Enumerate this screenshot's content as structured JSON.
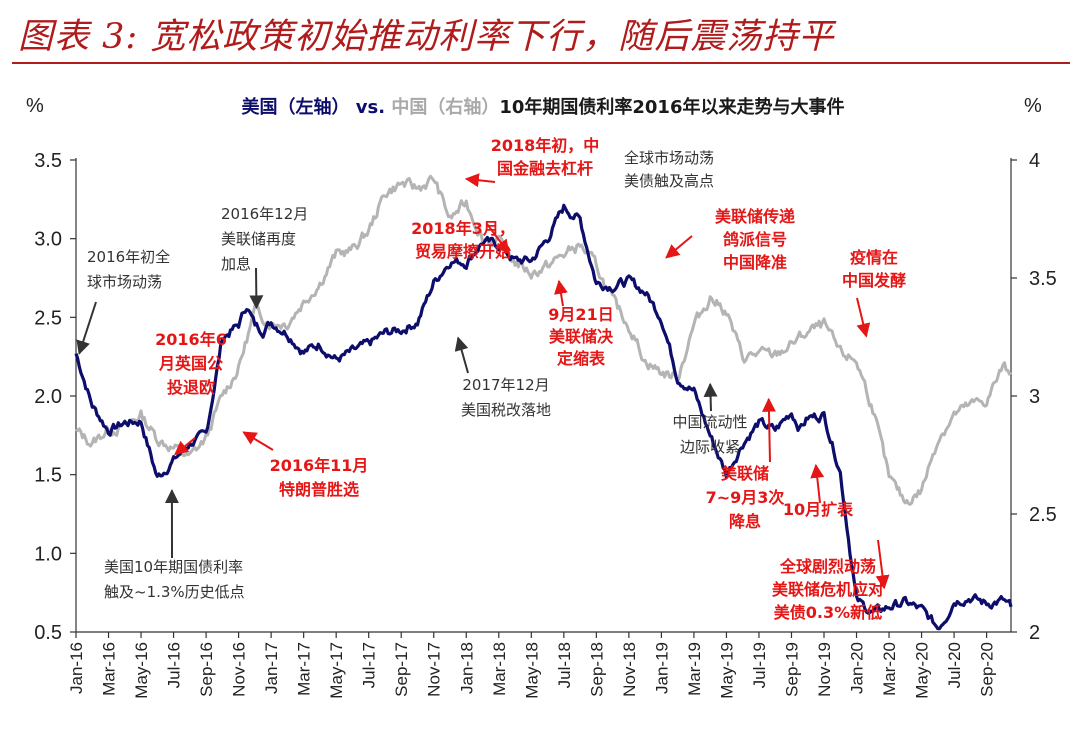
{
  "figure_title": "图表 3: 宽松政策初始推动利率下行，随后震荡持平",
  "colors": {
    "title": "#b01c1c",
    "us_series": "#0d0d6b",
    "cn_series": "#b4b4b4",
    "red_annotation": "#e51616",
    "dark_annotation": "#333333"
  },
  "chart_data": {
    "type": "line",
    "title": {
      "us": "美国（左轴）",
      "vs": " vs. ",
      "cn": "中国（右轴）",
      "rest": "10年期国债利率2016年以来走势与大事件"
    },
    "left_unit": "%",
    "right_unit": "%",
    "left_axis": {
      "min": 0.5,
      "max": 3.5,
      "ticks": [
        "3.5",
        "3.0",
        "2.5",
        "2.0",
        "1.5",
        "1.0",
        "0.5"
      ]
    },
    "right_axis": {
      "min": 2,
      "max": 4,
      "ticks": [
        "4",
        "3.5",
        "3",
        "2.5",
        "2"
      ]
    },
    "x_range": [
      0,
      57.5
    ],
    "x_tick_labels": [
      "Jan-16",
      "Mar-16",
      "May-16",
      "Jul-16",
      "Sep-16",
      "Nov-16",
      "Jan-17",
      "Mar-17",
      "May-17",
      "Jul-17",
      "Sep-17",
      "Nov-17",
      "Jan-18",
      "Mar-18",
      "May-18",
      "Jul-18",
      "Sep-18",
      "Nov-18",
      "Jan-19",
      "Mar-19",
      "May-19",
      "Jul-19",
      "Sep-19",
      "Nov-19",
      "Jan-20",
      "Mar-20",
      "May-20",
      "Jul-20",
      "Sep-20"
    ],
    "series": [
      {
        "name": "美国10年期国债利率",
        "axis": "left",
        "x": [
          0,
          1,
          2,
          3,
          4,
          5,
          6,
          7,
          8,
          9,
          10,
          10.5,
          11,
          11.5,
          12,
          13,
          14,
          15,
          16,
          17,
          18,
          19,
          20,
          21,
          22,
          23,
          24,
          25,
          26,
          27,
          28,
          29,
          30,
          31,
          32,
          33,
          34,
          35,
          36,
          37,
          38,
          39,
          40,
          41,
          42,
          43,
          44,
          44.5,
          45,
          46,
          47,
          48,
          49,
          50,
          51,
          52,
          53,
          53.5,
          54,
          55,
          56,
          57,
          57.5
        ],
        "values": [
          2.27,
          1.94,
          1.78,
          1.83,
          1.84,
          1.48,
          1.59,
          1.7,
          1.75,
          2.37,
          2.45,
          2.58,
          2.45,
          2.42,
          2.47,
          2.4,
          2.28,
          2.33,
          2.23,
          2.28,
          2.33,
          2.4,
          2.42,
          2.47,
          2.72,
          2.86,
          2.85,
          2.98,
          2.96,
          2.86,
          2.86,
          3.0,
          3.2,
          3.12,
          2.72,
          2.7,
          2.73,
          2.66,
          2.5,
          2.12,
          2.03,
          1.75,
          1.5,
          1.7,
          1.83,
          1.78,
          1.9,
          1.8,
          1.86,
          1.88,
          1.52,
          0.7,
          0.62,
          0.66,
          0.69,
          0.64,
          0.53,
          0.6,
          0.7,
          0.72,
          0.68,
          0.7,
          0.66
        ]
      },
      {
        "name": "中国10年期国债利率",
        "axis": "right",
        "x": [
          0,
          1,
          2,
          3,
          4,
          5,
          6,
          7,
          8,
          9,
          10,
          11,
          12,
          13,
          14,
          15,
          16,
          17,
          18,
          19,
          20,
          21,
          22,
          23,
          24,
          25,
          26,
          27,
          28,
          29,
          30,
          31,
          32,
          33,
          34,
          35,
          36,
          37,
          38,
          39,
          40,
          41,
          42,
          43,
          44,
          45,
          46,
          47,
          48,
          49,
          50,
          51,
          52,
          53,
          54,
          55,
          56,
          57,
          57.5
        ],
        "values": [
          2.85,
          2.8,
          2.86,
          2.87,
          2.92,
          2.82,
          2.78,
          2.74,
          2.82,
          3.0,
          3.12,
          3.36,
          3.31,
          3.31,
          3.4,
          3.48,
          3.6,
          3.62,
          3.7,
          3.86,
          3.9,
          3.88,
          3.92,
          3.75,
          3.82,
          3.67,
          3.65,
          3.57,
          3.52,
          3.55,
          3.6,
          3.64,
          3.55,
          3.4,
          3.3,
          3.15,
          3.1,
          3.08,
          3.3,
          3.42,
          3.36,
          3.16,
          3.18,
          3.17,
          3.22,
          3.27,
          3.3,
          3.18,
          3.15,
          2.95,
          2.65,
          2.55,
          2.6,
          2.82,
          2.92,
          2.96,
          2.98,
          3.12,
          3.1
        ]
      }
    ],
    "annotations": [
      {
        "lines": [
          "2016年初全",
          "球市场动荡"
        ],
        "color": "dark",
        "bold": false,
        "point": [
          0.2,
          2.27
        ],
        "axis": "left"
      },
      {
        "lines": [
          "2016年12月",
          "美联储再度",
          "加息"
        ],
        "color": "dark",
        "bold": false,
        "point": [
          11.1,
          2.56
        ],
        "axis": "left"
      },
      {
        "lines": [
          "2016年6",
          "月英国公",
          "投退欧"
        ],
        "color": "red",
        "bold": true,
        "point": [
          6.1,
          1.63
        ],
        "axis": "left"
      },
      {
        "lines": [
          "2016年11月",
          "特朗普胜选"
        ],
        "color": "red",
        "bold": true,
        "point": [
          10.3,
          1.77
        ],
        "axis": "left"
      },
      {
        "lines": [
          "美国10年期国债利率",
          "触及~1.3%历史低点"
        ],
        "color": "dark",
        "bold": false,
        "point": [
          5.9,
          1.4
        ],
        "axis": "left"
      },
      {
        "lines": [
          "2017年12月",
          "美国税改落地"
        ],
        "color": "dark",
        "bold": false,
        "point": [
          23.5,
          2.37
        ],
        "axis": "left"
      },
      {
        "lines": [
          "2018年初，中",
          "国金融去杠杆"
        ],
        "color": "red",
        "bold": true,
        "point": [
          24.0,
          3.38
        ],
        "axis": "left"
      },
      {
        "lines": [
          "2018年3月，",
          "贸易摩擦开始"
        ],
        "color": "red",
        "bold": true,
        "point": [
          26.6,
          2.91
        ],
        "axis": "left"
      },
      {
        "lines": [
          "9月21日",
          "美联储决",
          "定缩表"
        ],
        "color": "red",
        "bold": true,
        "point": [
          29.7,
          2.73
        ],
        "axis": "left"
      },
      {
        "lines": [
          "全球市场动荡",
          "美债触及高点"
        ],
        "color": "dark",
        "bold": false,
        "point": null,
        "axis": "left"
      },
      {
        "lines": [
          "美联储传递",
          "鸽派信号",
          "中国降准"
        ],
        "color": "red",
        "bold": true,
        "point": [
          36.3,
          2.88
        ],
        "axis": "left"
      },
      {
        "lines": [
          "中国流动性",
          "边际收紧"
        ],
        "color": "dark",
        "bold": false,
        "point": [
          39.0,
          3.05
        ],
        "axis": "right"
      },
      {
        "lines": [
          "疫情在",
          "中国发酵"
        ],
        "color": "red",
        "bold": true,
        "point": [
          48.6,
          2.38
        ],
        "axis": "left"
      },
      {
        "lines": [
          "美联储",
          "7~9月3次",
          "降息"
        ],
        "color": "red",
        "bold": true,
        "point": [
          42.6,
          1.98
        ],
        "axis": "left"
      },
      {
        "lines": [
          "10月扩表"
        ],
        "color": "red",
        "bold": true,
        "point": [
          45.5,
          1.56
        ],
        "axis": "left"
      },
      {
        "lines": [
          "全球剧烈动荡",
          "美联储危机应对",
          "美债0.3%新低"
        ],
        "color": "red",
        "bold": true,
        "point": [
          49.7,
          0.78
        ],
        "axis": "left"
      }
    ]
  }
}
